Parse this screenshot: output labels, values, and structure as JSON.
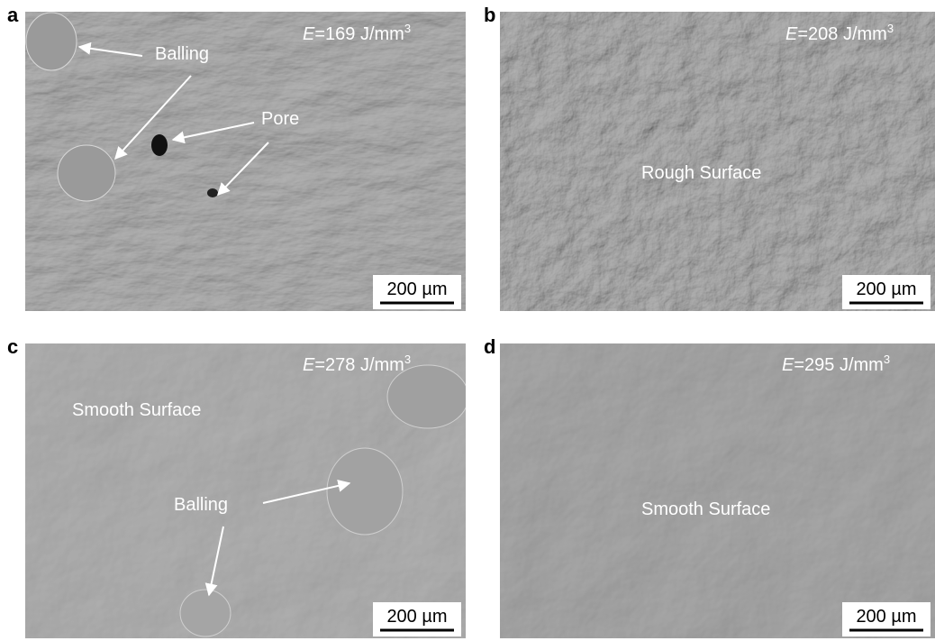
{
  "panels": [
    {
      "label": "a",
      "energy": {
        "symbol": "E",
        "text": "=169 J/mm",
        "exponent": "3"
      },
      "annotations": [
        "Balling",
        "Pore"
      ],
      "scale_bar": "200 µm"
    },
    {
      "label": "b",
      "energy": {
        "symbol": "E",
        "text": "=208 J/mm",
        "exponent": "3"
      },
      "annotations": [
        "Rough Surface"
      ],
      "scale_bar": "200 µm"
    },
    {
      "label": "c",
      "energy": {
        "symbol": "E",
        "text": "=278 J/mm",
        "exponent": "3"
      },
      "annotations": [
        "Smooth Surface",
        "Balling"
      ],
      "scale_bar": "200 µm"
    },
    {
      "label": "d",
      "energy": {
        "symbol": "E",
        "text": "=295 J/mm",
        "exponent": "3"
      },
      "annotations": [
        "Smooth Surface"
      ],
      "scale_bar": "200 µm"
    }
  ]
}
